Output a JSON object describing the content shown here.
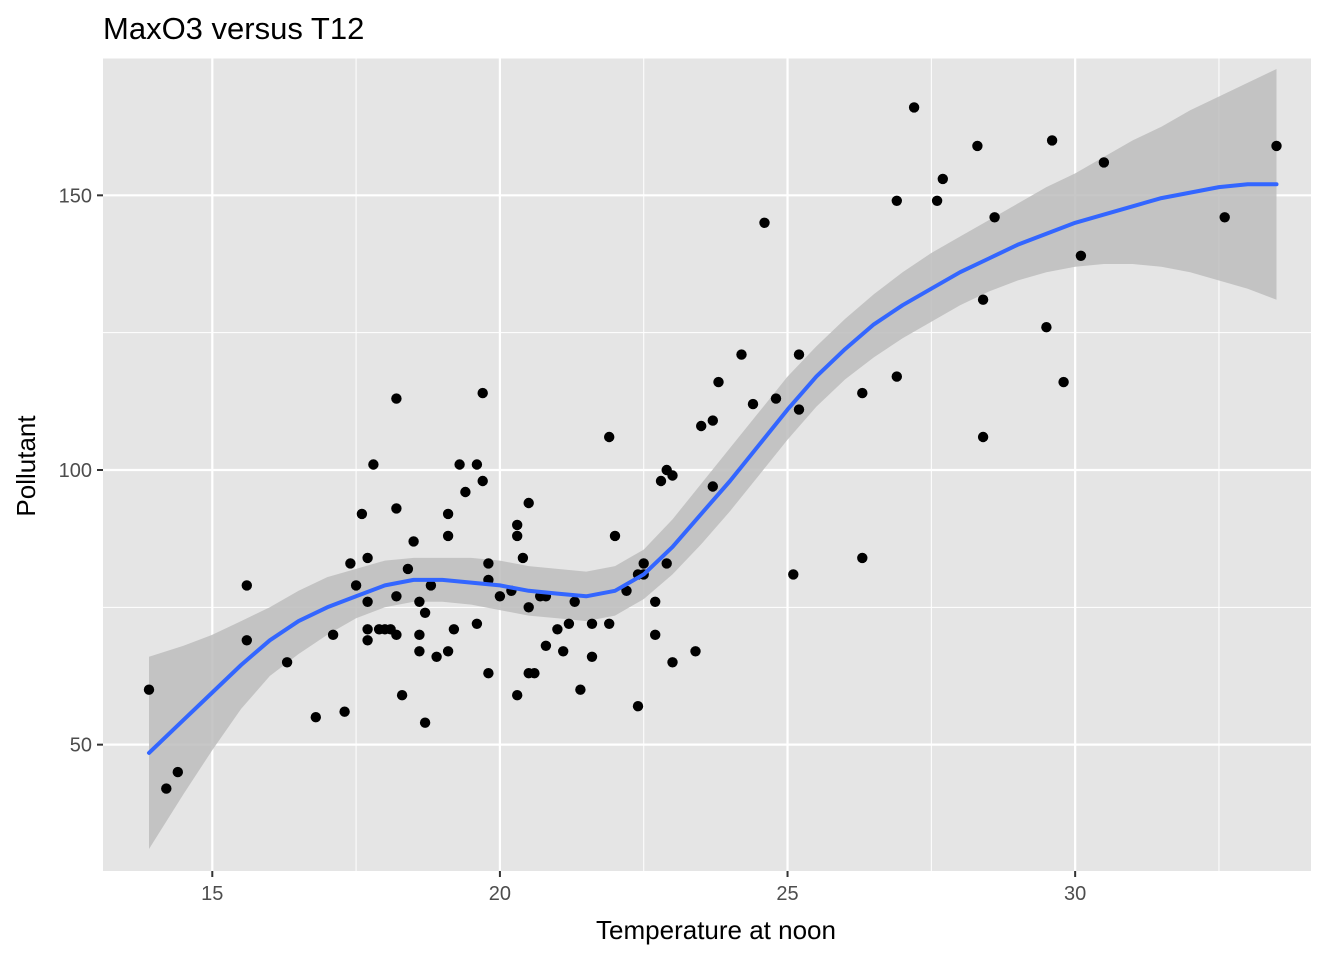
{
  "chart_data": {
    "type": "scatter",
    "title": "MaxO3 versus T12",
    "xlabel": "Temperature at noon",
    "ylabel": "Pollutant",
    "xlim": [
      13.1,
      34.1
    ],
    "ylim": [
      27,
      175
    ],
    "x_ticks": [
      15,
      20,
      25,
      30
    ],
    "x_tick_labels": [
      "15",
      "20",
      "25",
      "30"
    ],
    "y_ticks": [
      50,
      100,
      150
    ],
    "y_tick_labels": [
      "50",
      "100",
      "150"
    ],
    "grid": true,
    "colors": {
      "panel_background": "#e5e5e5",
      "grid": "#ffffff",
      "points": "#000000",
      "smooth_line": "#3366ff",
      "confidence_band": "#bdbdbd"
    },
    "points": [
      [
        13.9,
        60
      ],
      [
        14.2,
        42
      ],
      [
        14.4,
        45
      ],
      [
        15.6,
        79
      ],
      [
        15.6,
        69
      ],
      [
        16.3,
        65
      ],
      [
        16.8,
        55
      ],
      [
        17.1,
        70
      ],
      [
        17.3,
        56
      ],
      [
        17.4,
        83
      ],
      [
        17.5,
        79
      ],
      [
        17.6,
        92
      ],
      [
        17.7,
        84
      ],
      [
        17.7,
        76
      ],
      [
        17.7,
        71
      ],
      [
        17.7,
        69
      ],
      [
        17.8,
        101
      ],
      [
        17.9,
        71
      ],
      [
        18.0,
        71
      ],
      [
        18.1,
        71
      ],
      [
        18.2,
        113
      ],
      [
        18.2,
        93
      ],
      [
        18.2,
        77
      ],
      [
        18.2,
        70
      ],
      [
        18.3,
        59
      ],
      [
        18.4,
        82
      ],
      [
        18.5,
        87
      ],
      [
        18.6,
        76
      ],
      [
        18.6,
        70
      ],
      [
        18.6,
        67
      ],
      [
        18.7,
        74
      ],
      [
        18.7,
        54
      ],
      [
        18.8,
        79
      ],
      [
        18.9,
        66
      ],
      [
        19.1,
        92
      ],
      [
        19.1,
        88
      ],
      [
        19.1,
        67
      ],
      [
        19.2,
        71
      ],
      [
        19.3,
        101
      ],
      [
        19.4,
        96
      ],
      [
        19.6,
        101
      ],
      [
        19.6,
        72
      ],
      [
        19.7,
        114
      ],
      [
        19.7,
        98
      ],
      [
        19.8,
        83
      ],
      [
        19.8,
        80
      ],
      [
        19.8,
        63
      ],
      [
        20.0,
        77
      ],
      [
        20.2,
        78
      ],
      [
        20.3,
        90
      ],
      [
        20.3,
        88
      ],
      [
        20.3,
        59
      ],
      [
        20.4,
        84
      ],
      [
        20.5,
        94
      ],
      [
        20.5,
        75
      ],
      [
        20.5,
        63
      ],
      [
        20.6,
        63
      ],
      [
        20.7,
        77
      ],
      [
        20.8,
        77
      ],
      [
        20.8,
        68
      ],
      [
        21.0,
        71
      ],
      [
        21.1,
        67
      ],
      [
        21.2,
        72
      ],
      [
        21.3,
        76
      ],
      [
        21.4,
        60
      ],
      [
        21.6,
        72
      ],
      [
        21.6,
        66
      ],
      [
        21.9,
        106
      ],
      [
        21.9,
        72
      ],
      [
        22.0,
        88
      ],
      [
        22.2,
        78
      ],
      [
        22.4,
        81
      ],
      [
        22.4,
        57
      ],
      [
        22.5,
        83
      ],
      [
        22.5,
        81
      ],
      [
        22.7,
        76
      ],
      [
        22.7,
        70
      ],
      [
        22.8,
        98
      ],
      [
        22.9,
        100
      ],
      [
        22.9,
        83
      ],
      [
        23.0,
        99
      ],
      [
        23.0,
        65
      ],
      [
        23.4,
        67
      ],
      [
        23.5,
        108
      ],
      [
        23.7,
        109
      ],
      [
        23.7,
        97
      ],
      [
        23.8,
        116
      ],
      [
        24.2,
        121
      ],
      [
        24.4,
        112
      ],
      [
        24.6,
        145
      ],
      [
        24.8,
        113
      ],
      [
        25.1,
        81
      ],
      [
        25.2,
        121
      ],
      [
        25.2,
        111
      ],
      [
        26.3,
        114
      ],
      [
        26.3,
        84
      ],
      [
        26.9,
        149
      ],
      [
        26.9,
        117
      ],
      [
        27.2,
        166
      ],
      [
        27.6,
        149
      ],
      [
        27.7,
        153
      ],
      [
        28.3,
        159
      ],
      [
        28.4,
        131
      ],
      [
        28.4,
        106
      ],
      [
        28.6,
        146
      ],
      [
        29.5,
        126
      ],
      [
        29.6,
        160
      ],
      [
        29.8,
        116
      ],
      [
        30.1,
        139
      ],
      [
        30.5,
        156
      ],
      [
        32.6,
        146
      ],
      [
        33.5,
        159
      ]
    ],
    "smooth": {
      "method": "loess",
      "x": [
        13.9,
        14.5,
        15.0,
        15.5,
        16.0,
        16.5,
        17.0,
        17.5,
        18.0,
        18.5,
        19.0,
        19.5,
        20.0,
        20.5,
        21.0,
        21.5,
        22.0,
        22.5,
        23.0,
        23.5,
        24.0,
        24.5,
        25.0,
        25.5,
        26.0,
        26.5,
        27.0,
        27.5,
        28.0,
        28.5,
        29.0,
        29.5,
        30.0,
        30.5,
        31.0,
        31.5,
        32.0,
        32.5,
        33.0,
        33.5
      ],
      "fit": [
        48.5,
        54.5,
        59.5,
        64.5,
        69.0,
        72.5,
        75.0,
        77.0,
        79.0,
        80.0,
        80.0,
        79.5,
        79.0,
        78.0,
        77.5,
        77.0,
        78.0,
        81.0,
        86.0,
        92.0,
        98.0,
        104.5,
        111.0,
        117.0,
        122.0,
        126.5,
        130.0,
        133.0,
        136.0,
        138.5,
        141.0,
        143.0,
        145.0,
        146.5,
        148.0,
        149.5,
        150.5,
        151.5,
        152.0,
        152.0
      ],
      "lower": [
        31.0,
        41.0,
        49.0,
        56.5,
        62.5,
        66.5,
        70.0,
        73.0,
        75.0,
        76.0,
        76.0,
        75.5,
        74.5,
        73.5,
        73.0,
        72.5,
        73.5,
        76.5,
        81.0,
        86.5,
        92.5,
        99.0,
        105.5,
        111.5,
        116.5,
        120.5,
        124.0,
        127.0,
        130.0,
        132.5,
        134.5,
        136.0,
        137.0,
        137.5,
        137.5,
        137.0,
        136.0,
        134.5,
        133.0,
        131.0
      ],
      "upper": [
        66.0,
        68.0,
        70.0,
        72.5,
        75.0,
        78.0,
        80.5,
        82.0,
        83.5,
        84.0,
        84.0,
        84.0,
        83.5,
        82.5,
        82.0,
        81.5,
        82.5,
        85.5,
        91.0,
        97.5,
        104.0,
        110.5,
        117.0,
        122.5,
        127.5,
        132.0,
        136.0,
        139.5,
        142.5,
        145.5,
        148.5,
        151.5,
        154.0,
        157.0,
        160.0,
        162.5,
        165.5,
        168.0,
        170.5,
        173.0
      ]
    }
  }
}
